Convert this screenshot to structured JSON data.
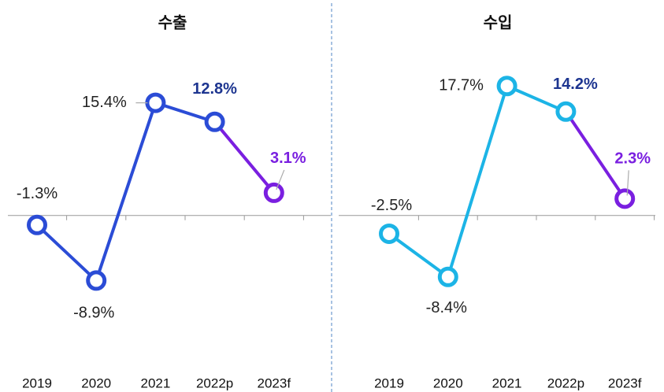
{
  "chart_data": [
    {
      "type": "line",
      "title": "수출",
      "categories": [
        "2019",
        "2020",
        "2021",
        "2022p",
        "2023f"
      ],
      "values": [
        -1.3,
        -8.9,
        15.4,
        12.8,
        3.1
      ],
      "value_labels": [
        "-1.3%",
        "-8.9%",
        "15.4%",
        "12.8%",
        "3.1%"
      ],
      "point_colors": [
        "#2b4cd6",
        "#2b4cd6",
        "#2b4cd6",
        "#2b4cd6",
        "#7a1fe0"
      ],
      "ylim": [
        -18,
        23
      ]
    },
    {
      "type": "line",
      "title": "수입",
      "categories": [
        "2019",
        "2020",
        "2021",
        "2022p",
        "2023f"
      ],
      "values": [
        -2.5,
        -8.4,
        17.7,
        14.2,
        2.3
      ],
      "value_labels": [
        "-2.5%",
        "-8.4%",
        "17.7%",
        "14.2%",
        "2.3%"
      ],
      "point_colors": [
        "#1cb4e6",
        "#1cb4e6",
        "#1cb4e6",
        "#1cb4e6",
        "#7a1fe0"
      ],
      "ylim": [
        -18,
        23
      ]
    }
  ]
}
